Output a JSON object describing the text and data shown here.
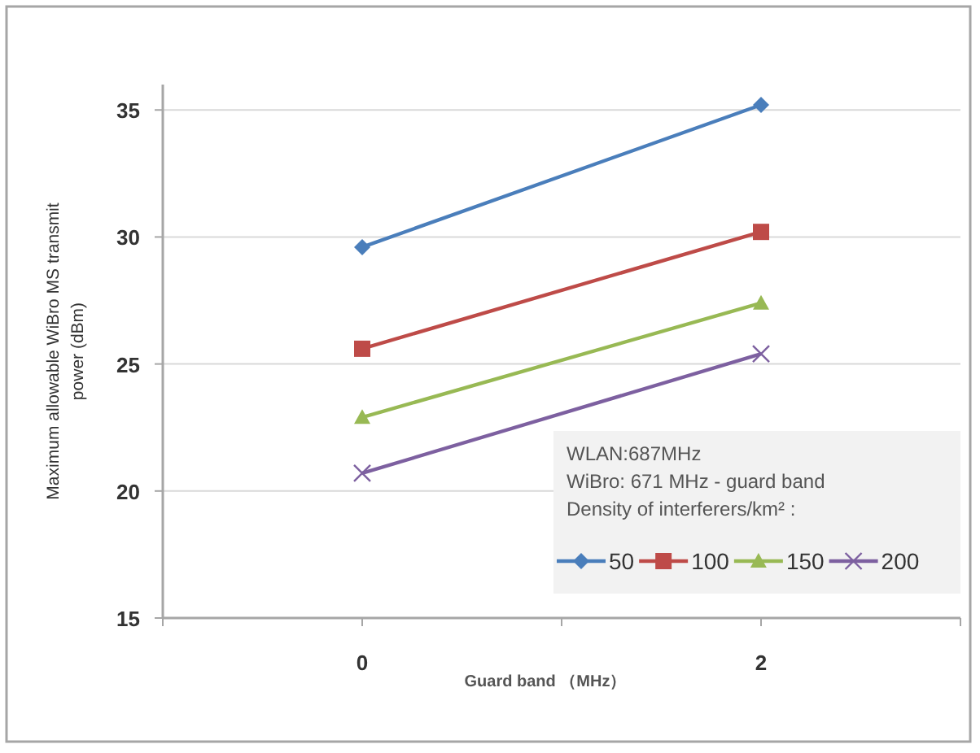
{
  "chart_data": {
    "type": "line",
    "xlabel": "Guard band （MHz）",
    "ylabel": "Maximum allowable WiBro MS transmit\npower (dBm)",
    "legend_title": "WLAN:687MHz\nWiBro: 671 MHz - guard band\nDensity of interferers/km² :",
    "x": [
      0,
      2
    ],
    "series": [
      {
        "name": "50",
        "color": "#4a7ebb",
        "marker": "diamond",
        "values": [
          29.6,
          35.2
        ]
      },
      {
        "name": "100",
        "color": "#be4b48",
        "marker": "square",
        "values": [
          25.6,
          30.2
        ]
      },
      {
        "name": "150",
        "color": "#98b954",
        "marker": "triangle",
        "values": [
          22.9,
          27.4
        ]
      },
      {
        "name": "200",
        "color": "#7d60a0",
        "marker": "cross",
        "values": [
          20.7,
          25.4
        ]
      }
    ],
    "xlim": [
      -1,
      3
    ],
    "xticks": [
      {
        "value": -1,
        "label": null
      },
      0,
      {
        "value": 1,
        "label": null
      },
      2,
      {
        "value": 3,
        "label": null
      }
    ],
    "ylim": [
      15,
      36
    ],
    "yticks": [
      15,
      20,
      25,
      30,
      35
    ],
    "grid": "y",
    "legend": "bottom right"
  }
}
